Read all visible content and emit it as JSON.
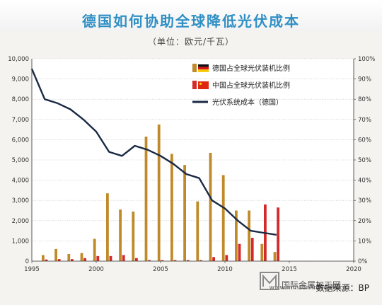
{
  "chart_data": {
    "type": "bar",
    "title": "德国如何协助全球降低光伏成本",
    "subtitle": "（单位：欧元/千瓦）",
    "x_ticks": [
      1995,
      2000,
      2005,
      2010,
      2015,
      2020
    ],
    "y_left_ticks": [
      "0",
      "1,000",
      "2,000",
      "3,000",
      "4,000",
      "5,000",
      "6,000",
      "7,000",
      "8,000",
      "9,000",
      "10,000"
    ],
    "y_right_ticks": [
      "0%",
      "10%",
      "20%",
      "30%",
      "40%",
      "50%",
      "60%",
      "70%",
      "80%",
      "90%",
      "100%"
    ],
    "xlim": [
      1995,
      2020
    ],
    "ylim_left": [
      0,
      10000
    ],
    "ylim_right": [
      0,
      100
    ],
    "years": [
      1996,
      1997,
      1998,
      1999,
      2000,
      2001,
      2002,
      2003,
      2004,
      2005,
      2006,
      2007,
      2008,
      2009,
      2010,
      2011,
      2012,
      2013,
      2014
    ],
    "series": [
      {
        "name": "德国占全球光伏装机比例",
        "axis": "right",
        "color": "#c08a2a",
        "values": [
          3,
          6,
          3.5,
          4,
          11,
          33.5,
          25.5,
          24.5,
          61.5,
          67.5,
          53,
          47.5,
          29.5,
          53.5,
          42.5,
          25,
          25,
          8.5,
          4.5
        ]
      },
      {
        "name": "中国占全球光伏装机比例",
        "axis": "right",
        "color": "#d42a2a",
        "values": [
          0.8,
          1,
          1,
          1.5,
          2.5,
          2.5,
          3,
          1.5,
          0.5,
          0.5,
          0.5,
          0.5,
          0.5,
          2,
          3,
          8.5,
          11.5,
          28,
          26.5
        ]
      },
      {
        "name": "光伏系统成本（德国）",
        "axis": "left",
        "type": "line",
        "color": "#1a2a44",
        "years": [
          1995,
          1996,
          1997,
          1998,
          1999,
          2000,
          2001,
          2002,
          2003,
          2004,
          2005,
          2006,
          2007,
          2008,
          2009,
          2010,
          2011,
          2012,
          2013,
          2014
        ],
        "values": [
          9500,
          8000,
          7800,
          7500,
          7000,
          6400,
          5400,
          5200,
          5700,
          5500,
          5200,
          4800,
          4300,
          4100,
          3000,
          2600,
          2000,
          1500,
          1400,
          1300
        ]
      }
    ]
  },
  "source": "数据来源：BP",
  "watermark": {
    "url": "www.mmsonline.com.cn",
    "cn": "国际金属加工网"
  }
}
